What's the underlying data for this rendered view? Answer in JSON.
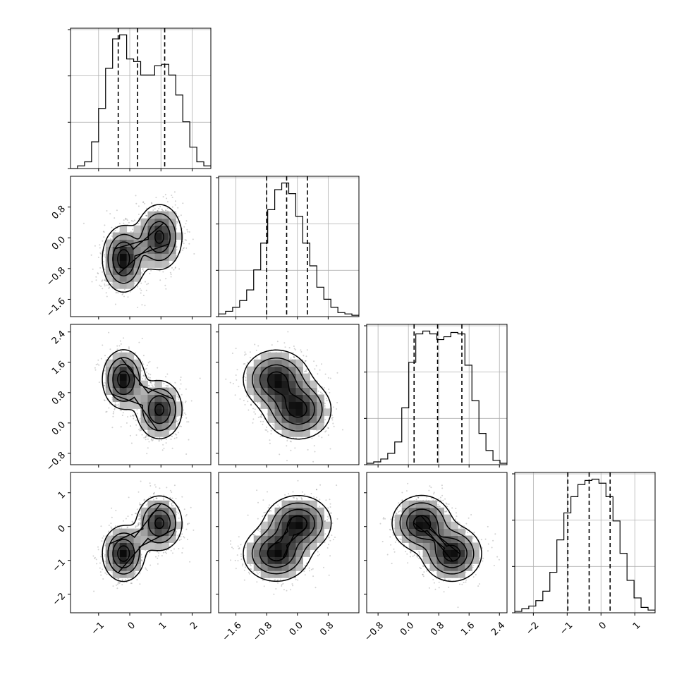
{
  "chart_data": {
    "type": "corner",
    "n_params": 4,
    "grid": true,
    "params": [
      {
        "range": [
          -1.9,
          2.6
        ],
        "ticks": [
          -1,
          0,
          1,
          2
        ],
        "tick_labels": [
          "−1",
          "0",
          "1",
          "2"
        ],
        "quantiles": [
          -0.37,
          0.25,
          1.12
        ],
        "hist_edges_start": -1.9,
        "hist_bin_width": 0.225,
        "hist_counts": [
          0,
          2,
          5,
          20,
          45,
          75,
          97,
          100,
          82,
          80,
          70,
          70,
          77,
          78,
          70,
          55,
          35,
          16,
          5,
          2
        ]
      },
      {
        "range": [
          -2.05,
          1.6
        ],
        "ticks": [
          -1.6,
          -0.8,
          0.0,
          0.8
        ],
        "tick_labels": [
          "−1.6",
          "−0.8",
          "0.0",
          "0.8"
        ],
        "quantiles": [
          -0.8,
          -0.28,
          0.26
        ],
        "hist_edges_start": -2.05,
        "hist_bin_width": 0.1825,
        "hist_counts": [
          2,
          4,
          7,
          12,
          20,
          35,
          55,
          80,
          95,
          100,
          92,
          75,
          55,
          38,
          22,
          13,
          7,
          3,
          2,
          1
        ]
      },
      {
        "range": [
          -1.1,
          2.6
        ],
        "ticks": [
          -0.8,
          0.0,
          0.8,
          1.6,
          2.4
        ],
        "tick_labels": [
          "−0.8",
          "0.0",
          "0.8",
          "1.6",
          "2.4"
        ],
        "quantiles": [
          0.15,
          0.77,
          1.41
        ],
        "hist_edges_start": -1.1,
        "hist_bin_width": 0.185,
        "hist_counts": [
          1,
          2,
          4,
          8,
          16,
          40,
          72,
          92,
          94,
          92,
          88,
          90,
          93,
          92,
          70,
          45,
          22,
          10,
          3,
          1
        ]
      },
      {
        "range": [
          -2.55,
          1.6
        ],
        "ticks": [
          -2,
          -1,
          0,
          1
        ],
        "tick_labels": [
          "−2",
          "−1",
          "0",
          "1"
        ],
        "quantiles": [
          -0.98,
          -0.35,
          0.27
        ],
        "hist_edges_start": -2.55,
        "hist_bin_width": 0.2075,
        "hist_counts": [
          1,
          3,
          5,
          9,
          16,
          30,
          54,
          74,
          86,
          95,
          98,
          99,
          96,
          86,
          68,
          44,
          24,
          11,
          4,
          2
        ]
      }
    ],
    "y_axis_params": [
      {
        "row": 1,
        "ticks": [
          -1.6,
          -0.8,
          0.0,
          0.8
        ],
        "tick_labels": [
          "−1.6",
          "−0.8",
          "0.0",
          "0.8"
        ]
      },
      {
        "row": 2,
        "ticks": [
          -0.8,
          0.0,
          0.8,
          1.6,
          2.4
        ],
        "tick_labels": [
          "−0.8",
          "0.0",
          "0.8",
          "1.6",
          "2.4"
        ]
      },
      {
        "row": 3,
        "ticks": [
          -2,
          -1,
          0,
          1
        ],
        "tick_labels": [
          "−2",
          "−1",
          "0",
          "1"
        ]
      }
    ],
    "modes": [
      {
        "weight": 0.5,
        "mean": [
          -0.2,
          -0.55,
          1.15,
          -0.8
        ],
        "sd": [
          0.33,
          0.42,
          0.38,
          0.4
        ]
      },
      {
        "weight": 0.5,
        "mean": [
          0.95,
          0.02,
          0.35,
          0.1
        ],
        "sd": [
          0.36,
          0.42,
          0.38,
          0.4
        ]
      }
    ],
    "hist_yticks": [
      0.33,
      0.66,
      0.99
    ],
    "x_labels": [
      "",
      "",
      "",
      ""
    ],
    "y_labels": [
      "",
      "",
      "",
      ""
    ],
    "title": ""
  }
}
